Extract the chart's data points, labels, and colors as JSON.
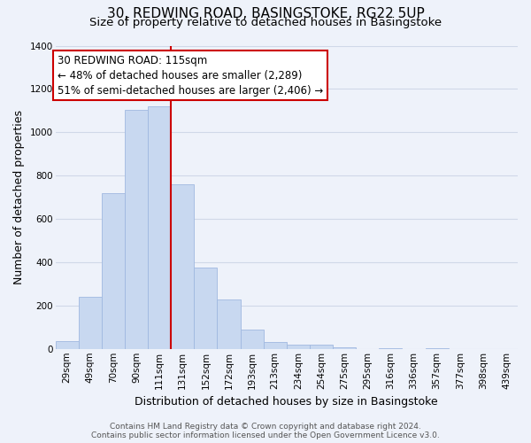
{
  "title": "30, REDWING ROAD, BASINGSTOKE, RG22 5UP",
  "subtitle": "Size of property relative to detached houses in Basingstoke",
  "xlabel": "Distribution of detached houses by size in Basingstoke",
  "ylabel": "Number of detached properties",
  "bar_labels": [
    "29sqm",
    "49sqm",
    "70sqm",
    "90sqm",
    "111sqm",
    "131sqm",
    "152sqm",
    "172sqm",
    "193sqm",
    "213sqm",
    "234sqm",
    "254sqm",
    "275sqm",
    "295sqm",
    "316sqm",
    "336sqm",
    "357sqm",
    "377sqm",
    "398sqm",
    "439sqm"
  ],
  "bar_values": [
    35,
    240,
    720,
    1105,
    1120,
    760,
    375,
    230,
    90,
    30,
    18,
    20,
    8,
    0,
    5,
    0,
    3,
    0,
    0,
    0
  ],
  "bar_color": "#c8d8f0",
  "bar_edgecolor": "#a0b8e0",
  "vline_index": 4,
  "vline_color": "#cc0000",
  "annotation_title": "30 REDWING ROAD: 115sqm",
  "annotation_line1": "← 48% of detached houses are smaller (2,289)",
  "annotation_line2": "51% of semi-detached houses are larger (2,406) →",
  "annotation_box_facecolor": "#ffffff",
  "annotation_box_edgecolor": "#cc0000",
  "ylim": [
    0,
    1400
  ],
  "yticks": [
    0,
    200,
    400,
    600,
    800,
    1000,
    1200,
    1400
  ],
  "footer_line1": "Contains HM Land Registry data © Crown copyright and database right 2024.",
  "footer_line2": "Contains public sector information licensed under the Open Government Licence v3.0.",
  "bg_color": "#eef2fa",
  "grid_color": "#d0d8e8",
  "title_fontsize": 11,
  "subtitle_fontsize": 9.5,
  "axis_label_fontsize": 9,
  "tick_fontsize": 7.5,
  "annotation_fontsize": 8.5,
  "footer_fontsize": 6.5
}
